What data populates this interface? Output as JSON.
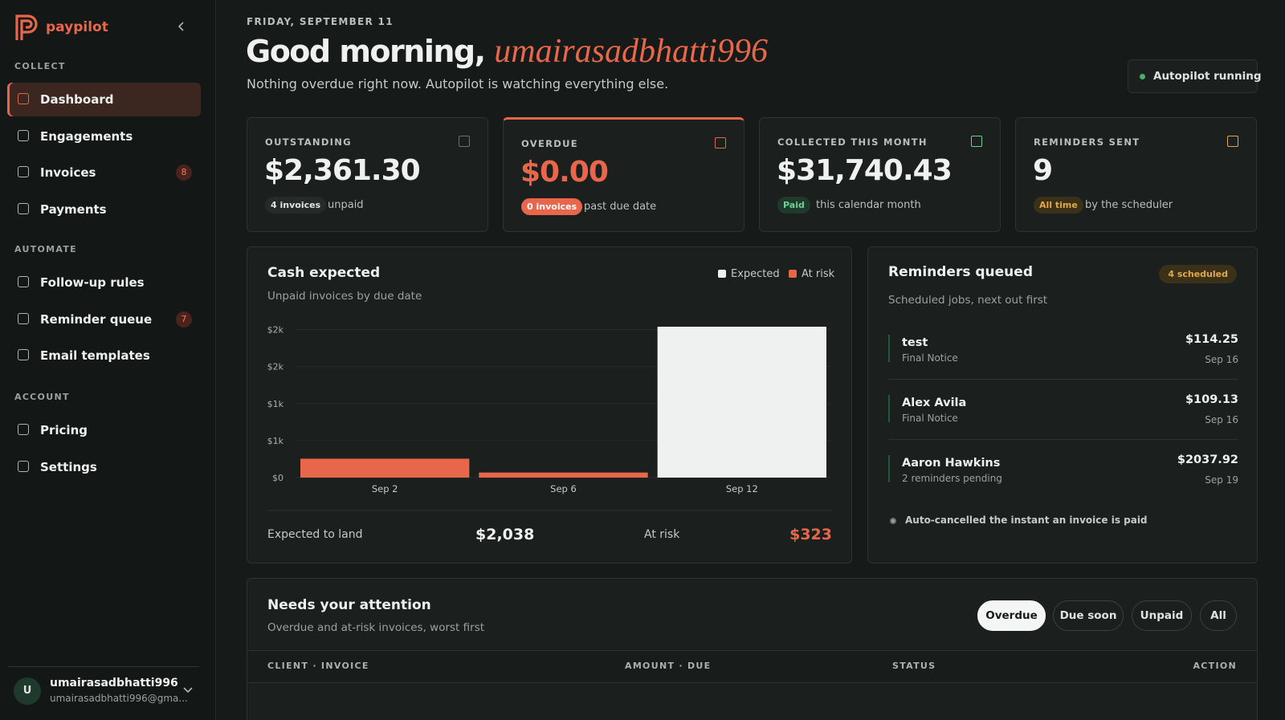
{
  "sidebar": {
    "brand": "paypilot",
    "sections": [
      {
        "title": "COLLECT",
        "items": [
          {
            "label": "Dashboard"
          },
          {
            "label": "Engagements"
          },
          {
            "label": "Invoices",
            "badge": 8
          },
          {
            "label": "Payments"
          }
        ]
      },
      {
        "title": "AUTOMATE",
        "items": [
          {
            "label": "Follow-up rules"
          },
          {
            "label": "Reminder queue",
            "badge": 7
          },
          {
            "label": "Email templates"
          }
        ]
      },
      {
        "title": "ACCOUNT",
        "items": [
          {
            "label": "Pricing"
          },
          {
            "label": "Settings"
          }
        ]
      }
    ],
    "user": {
      "initial": "U",
      "name": "umairasadbhatti996",
      "email": "umairasadbhatti996@gma..."
    }
  },
  "header": {
    "date": "FRIDAY, SEPTEMBER 11",
    "greeting": "Good morning,",
    "name": "umairasadbhatti996",
    "subtitle": "Nothing overdue right now. Autopilot is watching everything else.",
    "status": "Autopilot running"
  },
  "stats": [
    {
      "label": "OUTSTANDING",
      "value": "$2,361.30",
      "tag": "4 invoices",
      "note": "unpaid"
    },
    {
      "label": "OVERDUE",
      "value": "$0.00",
      "tag": "0 invoices",
      "note": "past due date"
    },
    {
      "label": "COLLECTED THIS MONTH",
      "value": "$31,740.43",
      "tag": "Paid",
      "note": "this calendar month"
    },
    {
      "label": "REMINDERS SENT",
      "value": "9",
      "tag": "All time",
      "note": "by the scheduler"
    }
  ],
  "chart_data": {
    "type": "bar",
    "stacked": true,
    "title": "Cash expected",
    "subtitle": "Unpaid invoices by due date",
    "categories": [
      "Sep 2",
      "Sep 6",
      "Sep 12"
    ],
    "series": [
      {
        "name": "Expected",
        "color": "#eef1ef",
        "values": [
          0,
          0,
          2038
        ]
      },
      {
        "name": "At risk",
        "color": "#e8674a",
        "values": [
          255,
          68,
          0
        ]
      }
    ],
    "ylim": [
      0,
      2038
    ],
    "yticks": [
      {
        "value": 0,
        "label": "$0"
      },
      {
        "value": 500,
        "label": "$1k"
      },
      {
        "value": 1000,
        "label": "$1k"
      },
      {
        "value": 1500,
        "label": "$2k"
      },
      {
        "value": 2000,
        "label": "$2k"
      }
    ],
    "grid": true,
    "legend": "top-right"
  },
  "cash_summary": {
    "expected_label": "Expected to land",
    "expected": "$2,038",
    "risk_label": "At risk",
    "risk": "$323"
  },
  "reminders": {
    "title": "Reminders queued",
    "tag": "4 scheduled",
    "subtitle": "Scheduled jobs, next out first",
    "items": [
      {
        "name": "test",
        "detail": "Final Notice",
        "amount": "$114.25",
        "date": "Sep 16"
      },
      {
        "name": "Alex Avila",
        "detail": "Final Notice",
        "amount": "$109.13",
        "date": "Sep 16"
      },
      {
        "name": "Aaron Hawkins",
        "detail": "2 reminders pending",
        "amount": "$2037.92",
        "date": "Sep 19"
      }
    ],
    "note": "Auto-cancelled the instant an invoice is paid"
  },
  "attention": {
    "title": "Needs your attention",
    "subtitle": "Overdue and at-risk invoices, worst first",
    "filters": [
      "Overdue",
      "Due soon",
      "Unpaid",
      "All"
    ],
    "columns": [
      "CLIENT · INVOICE",
      "AMOUNT · DUE",
      "STATUS",
      "ACTION"
    ]
  }
}
